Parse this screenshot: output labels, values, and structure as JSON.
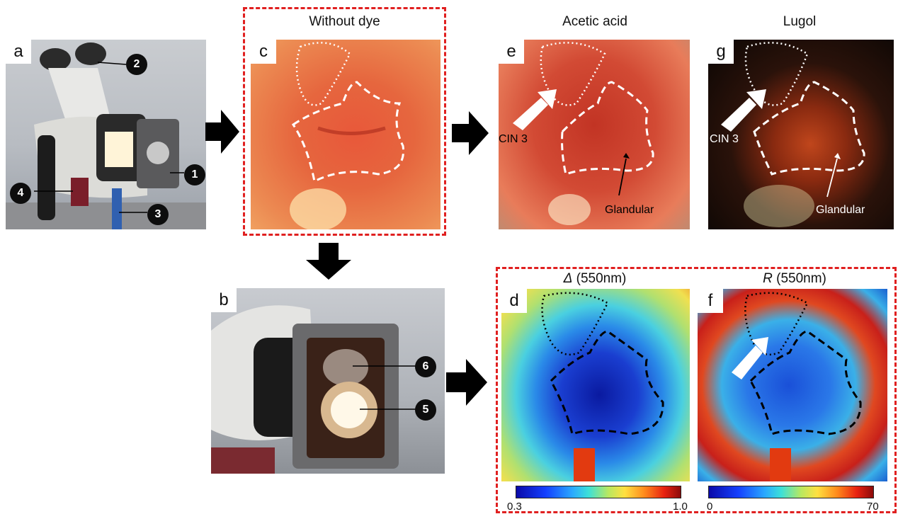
{
  "panels": {
    "a": {
      "letter": "a",
      "markers": [
        "1",
        "2",
        "3",
        "4"
      ]
    },
    "b": {
      "letter": "b",
      "markers": [
        "5",
        "6"
      ]
    },
    "c": {
      "letter": "c",
      "caption": "Without dye"
    },
    "e": {
      "letter": "e",
      "caption": "Acetic acid",
      "label_cin": "CIN 3",
      "label_glandular": "Glandular"
    },
    "g": {
      "letter": "g",
      "caption": "Lugol",
      "label_cin": "CIN 3",
      "label_glandular": "Glandular"
    },
    "d": {
      "letter": "d",
      "caption_symbol": "Δ",
      "caption_rest": " (550nm)",
      "cbar_min": "0.3",
      "cbar_max": "1.0"
    },
    "f": {
      "letter": "f",
      "caption_symbol": "R",
      "caption_rest": " (550nm)",
      "cbar_min": "0",
      "cbar_max": "70"
    }
  },
  "colors": {
    "highlight_box": "#e02020",
    "arrow": "#000000"
  }
}
